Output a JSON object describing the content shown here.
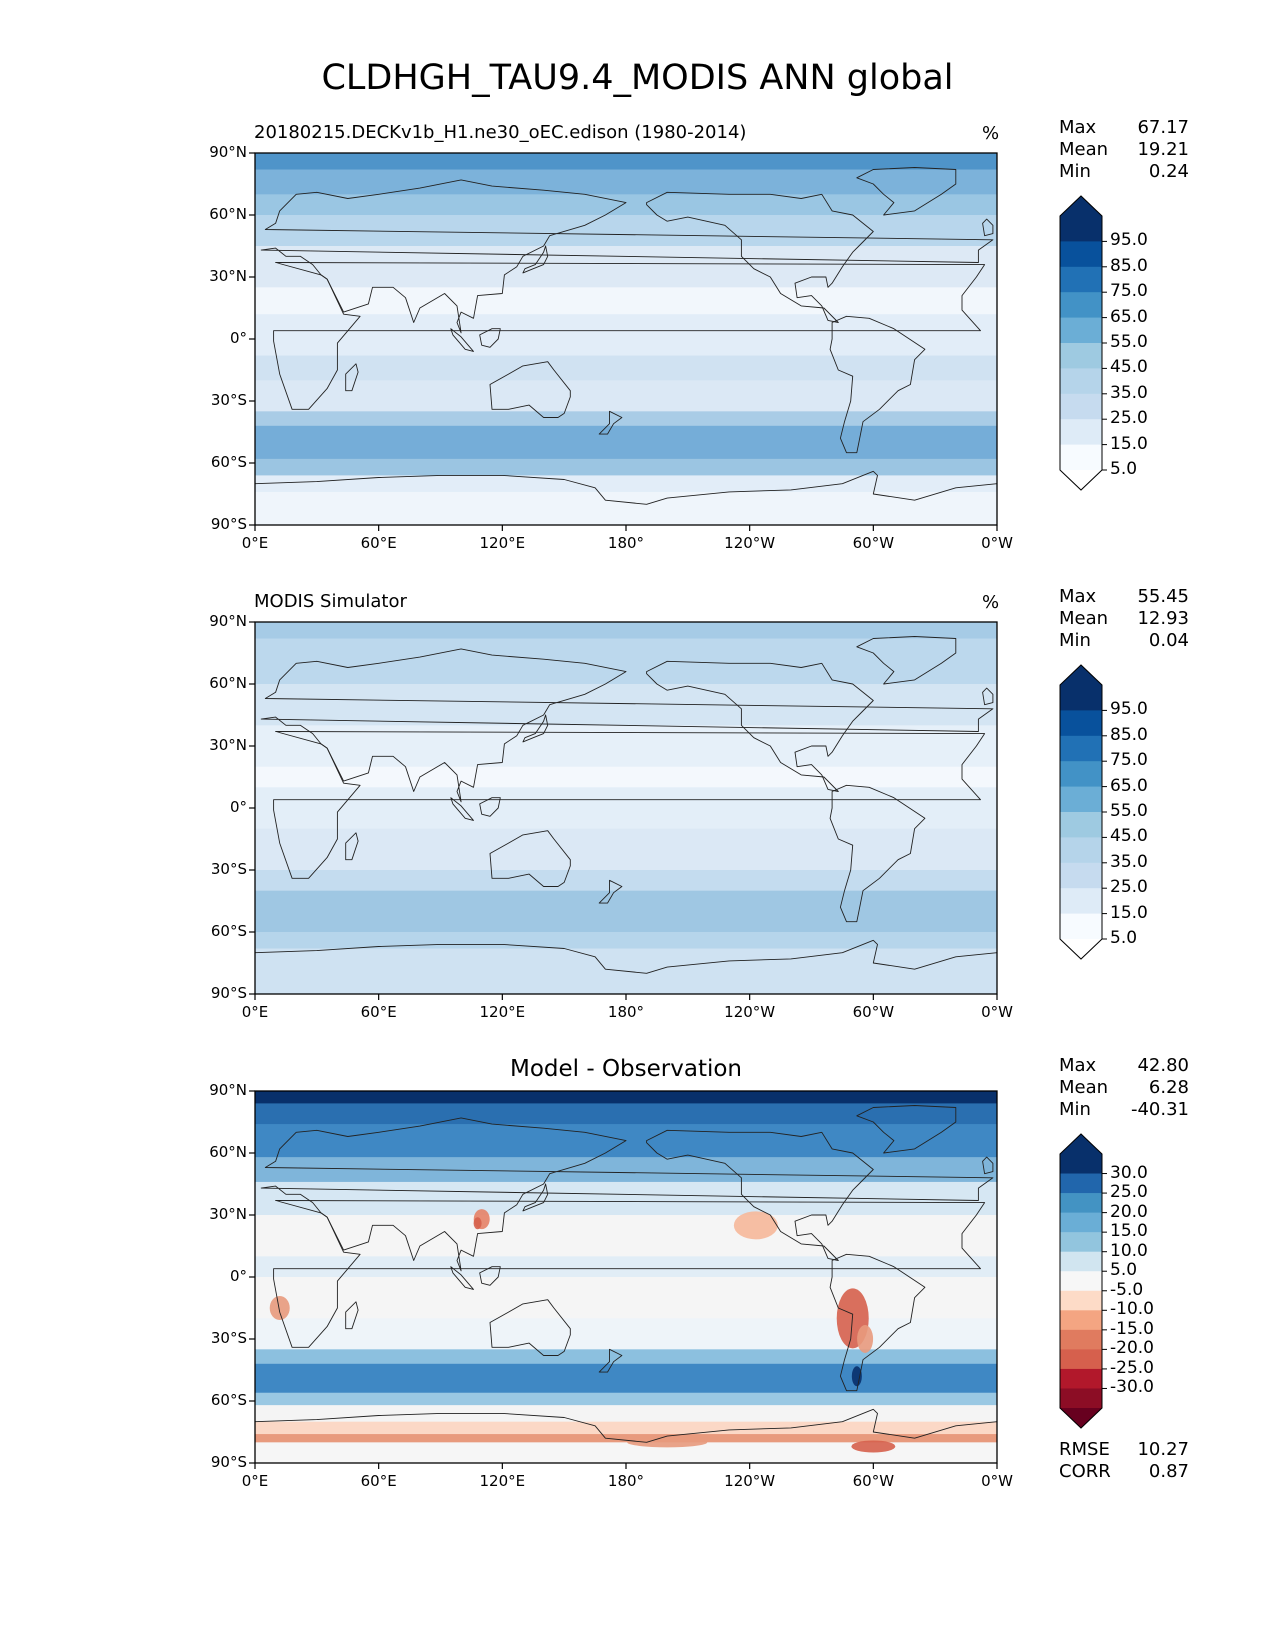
{
  "title": "CLDHGH_TAU9.4_MODIS ANN global",
  "axis_ticks": {
    "lat": [
      "90°N",
      "60°N",
      "30°N",
      "0°",
      "30°S",
      "60°S",
      "90°S"
    ],
    "lon": [
      "0°E",
      "60°E",
      "120°E",
      "180°",
      "120°W",
      "60°W",
      "0°W"
    ]
  },
  "panels": [
    {
      "id": "test",
      "title_left": "20180215.DECKv1b_H1.ne30_oEC.edison (1980-2014)",
      "units": "%",
      "stats": [
        {
          "label": "Max",
          "value": "67.17"
        },
        {
          "label": "Mean",
          "value": "19.21"
        },
        {
          "label": "Min",
          "value": "0.24"
        }
      ],
      "colorbar": {
        "labels": [
          "95.0",
          "85.0",
          "75.0",
          "65.0",
          "55.0",
          "45.0",
          "35.0",
          "25.0",
          "15.0",
          "5.0"
        ],
        "colors": [
          "#08306b",
          "#08519c",
          "#2171b5",
          "#4292c6",
          "#6baed6",
          "#9ecae1",
          "#b5d4ea",
          "#c6dbef",
          "#deebf7",
          "#f7fbff"
        ],
        "extend_top": "#08306b",
        "extend_bottom": "#ffffff"
      }
    },
    {
      "id": "ref",
      "title_left": "MODIS Simulator",
      "units": "%",
      "stats": [
        {
          "label": "Max",
          "value": "55.45"
        },
        {
          "label": "Mean",
          "value": "12.93"
        },
        {
          "label": "Min",
          "value": "0.04"
        }
      ],
      "colorbar": {
        "labels": [
          "95.0",
          "85.0",
          "75.0",
          "65.0",
          "55.0",
          "45.0",
          "35.0",
          "25.0",
          "15.0",
          "5.0"
        ],
        "colors": [
          "#08306b",
          "#08519c",
          "#2171b5",
          "#4292c6",
          "#6baed6",
          "#9ecae1",
          "#b5d4ea",
          "#c6dbef",
          "#deebf7",
          "#f7fbff"
        ],
        "extend_top": "#08306b",
        "extend_bottom": "#ffffff"
      }
    },
    {
      "id": "diff",
      "title_center": "Model - Observation",
      "stats": [
        {
          "label": "Max",
          "value": "42.80"
        },
        {
          "label": "Mean",
          "value": "6.28"
        },
        {
          "label": "Min",
          "value": "-40.31"
        }
      ],
      "stats_bottom": [
        {
          "label": "RMSE",
          "value": "10.27"
        },
        {
          "label": "CORR",
          "value": "0.87"
        }
      ],
      "colorbar": {
        "labels": [
          "30.0",
          "25.0",
          "20.0",
          "15.0",
          "10.0",
          "5.0",
          "-5.0",
          "-10.0",
          "-15.0",
          "-20.0",
          "-25.0",
          "-30.0"
        ],
        "colors": [
          "#08306b",
          "#2166ac",
          "#4393c3",
          "#6aaed6",
          "#92c5de",
          "#d1e5f0",
          "#f7f7f7",
          "#fddbc7",
          "#f4a582",
          "#e07b5f",
          "#d6604d",
          "#b2182b",
          "#8c0d25"
        ],
        "extend_top": "#08306b",
        "extend_bottom": "#67001f"
      }
    }
  ]
}
